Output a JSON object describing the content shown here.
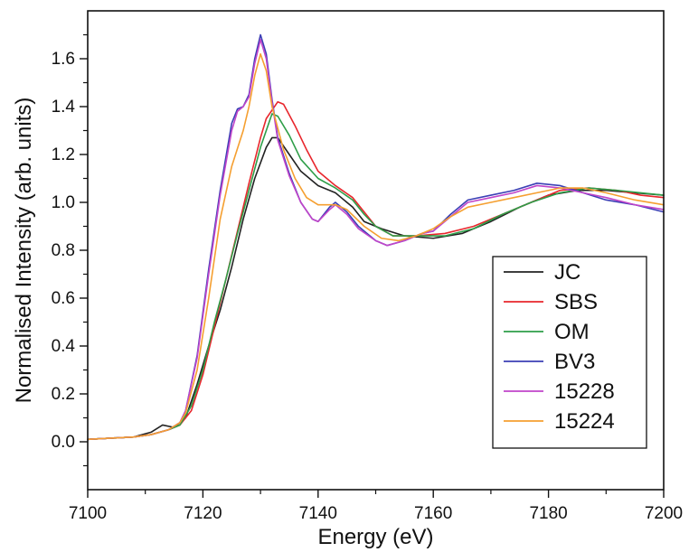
{
  "chart_data": {
    "type": "line",
    "title": "",
    "xlabel": "Energy (eV)",
    "ylabel": "Normalised Intensity (arb. units)",
    "xlim": [
      7100,
      7200
    ],
    "ylim": [
      -0.2,
      1.8
    ],
    "x_ticks": [
      "7100",
      "7120",
      "7140",
      "7160",
      "7180",
      "7200"
    ],
    "y_ticks": [
      "0.0",
      "0.2",
      "0.4",
      "0.6",
      "0.8",
      "1.0",
      "1.2",
      "1.4",
      "1.6"
    ],
    "grid": false,
    "legend_position": "lower-right",
    "series": [
      {
        "name": "JC",
        "color": "#222222",
        "points": [
          [
            7100,
            0.01
          ],
          [
            7108,
            0.02
          ],
          [
            7111,
            0.04
          ],
          [
            7113,
            0.07
          ],
          [
            7115,
            0.06
          ],
          [
            7117,
            0.1
          ],
          [
            7119,
            0.24
          ],
          [
            7121,
            0.4
          ],
          [
            7123,
            0.55
          ],
          [
            7125,
            0.73
          ],
          [
            7127,
            0.93
          ],
          [
            7129,
            1.1
          ],
          [
            7131,
            1.23
          ],
          [
            7132,
            1.27
          ],
          [
            7133,
            1.27
          ],
          [
            7135,
            1.2
          ],
          [
            7137,
            1.13
          ],
          [
            7140,
            1.07
          ],
          [
            7143,
            1.04
          ],
          [
            7146,
            0.98
          ],
          [
            7148,
            0.92
          ],
          [
            7151,
            0.89
          ],
          [
            7155,
            0.86
          ],
          [
            7160,
            0.85
          ],
          [
            7165,
            0.87
          ],
          [
            7170,
            0.92
          ],
          [
            7175,
            0.98
          ],
          [
            7180,
            1.03
          ],
          [
            7185,
            1.05
          ],
          [
            7190,
            1.05
          ],
          [
            7195,
            1.04
          ],
          [
            7200,
            1.03
          ]
        ]
      },
      {
        "name": "SBS",
        "color": "#e8262c",
        "points": [
          [
            7100,
            0.01
          ],
          [
            7108,
            0.02
          ],
          [
            7111,
            0.03
          ],
          [
            7114,
            0.05
          ],
          [
            7116,
            0.07
          ],
          [
            7118,
            0.13
          ],
          [
            7120,
            0.28
          ],
          [
            7122,
            0.48
          ],
          [
            7124,
            0.68
          ],
          [
            7126,
            0.88
          ],
          [
            7128,
            1.08
          ],
          [
            7130,
            1.27
          ],
          [
            7131,
            1.35
          ],
          [
            7133,
            1.42
          ],
          [
            7134,
            1.41
          ],
          [
            7136,
            1.32
          ],
          [
            7138,
            1.22
          ],
          [
            7140,
            1.13
          ],
          [
            7143,
            1.07
          ],
          [
            7146,
            1.02
          ],
          [
            7148,
            0.96
          ],
          [
            7150,
            0.9
          ],
          [
            7153,
            0.86
          ],
          [
            7157,
            0.86
          ],
          [
            7162,
            0.87
          ],
          [
            7167,
            0.9
          ],
          [
            7172,
            0.95
          ],
          [
            7177,
            1.0
          ],
          [
            7182,
            1.05
          ],
          [
            7187,
            1.06
          ],
          [
            7192,
            1.05
          ],
          [
            7196,
            1.03
          ],
          [
            7200,
            1.02
          ]
        ]
      },
      {
        "name": "OM",
        "color": "#2e9e48",
        "points": [
          [
            7100,
            0.01
          ],
          [
            7108,
            0.02
          ],
          [
            7111,
            0.03
          ],
          [
            7114,
            0.05
          ],
          [
            7116,
            0.07
          ],
          [
            7118,
            0.15
          ],
          [
            7120,
            0.3
          ],
          [
            7122,
            0.5
          ],
          [
            7124,
            0.68
          ],
          [
            7126,
            0.87
          ],
          [
            7128,
            1.05
          ],
          [
            7130,
            1.23
          ],
          [
            7131,
            1.3
          ],
          [
            7132,
            1.37
          ],
          [
            7133,
            1.36
          ],
          [
            7135,
            1.28
          ],
          [
            7137,
            1.18
          ],
          [
            7140,
            1.1
          ],
          [
            7143,
            1.06
          ],
          [
            7146,
            1.01
          ],
          [
            7148,
            0.95
          ],
          [
            7150,
            0.9
          ],
          [
            7153,
            0.86
          ],
          [
            7157,
            0.86
          ],
          [
            7162,
            0.86
          ],
          [
            7167,
            0.89
          ],
          [
            7172,
            0.95
          ],
          [
            7177,
            1.0
          ],
          [
            7182,
            1.04
          ],
          [
            7187,
            1.06
          ],
          [
            7192,
            1.05
          ],
          [
            7196,
            1.04
          ],
          [
            7200,
            1.03
          ]
        ]
      },
      {
        "name": "BV3",
        "color": "#3b3fb5",
        "points": [
          [
            7100,
            0.01
          ],
          [
            7108,
            0.02
          ],
          [
            7111,
            0.03
          ],
          [
            7114,
            0.05
          ],
          [
            7116,
            0.08
          ],
          [
            7117,
            0.13
          ],
          [
            7119,
            0.36
          ],
          [
            7121,
            0.72
          ],
          [
            7123,
            1.05
          ],
          [
            7125,
            1.33
          ],
          [
            7126,
            1.39
          ],
          [
            7127,
            1.4
          ],
          [
            7128,
            1.45
          ],
          [
            7129,
            1.6
          ],
          [
            7130,
            1.7
          ],
          [
            7131,
            1.62
          ],
          [
            7132,
            1.43
          ],
          [
            7133,
            1.27
          ],
          [
            7135,
            1.12
          ],
          [
            7137,
            1.0
          ],
          [
            7139,
            0.93
          ],
          [
            7140,
            0.92
          ],
          [
            7142,
            0.98
          ],
          [
            7143,
            1.0
          ],
          [
            7145,
            0.96
          ],
          [
            7147,
            0.9
          ],
          [
            7150,
            0.84
          ],
          [
            7152,
            0.82
          ],
          [
            7155,
            0.84
          ],
          [
            7158,
            0.87
          ],
          [
            7160,
            0.88
          ],
          [
            7163,
            0.95
          ],
          [
            7166,
            1.01
          ],
          [
            7170,
            1.03
          ],
          [
            7174,
            1.05
          ],
          [
            7178,
            1.08
          ],
          [
            7182,
            1.07
          ],
          [
            7186,
            1.04
          ],
          [
            7190,
            1.01
          ],
          [
            7195,
            0.99
          ],
          [
            7200,
            0.96
          ]
        ]
      },
      {
        "name": "15228",
        "color": "#c044c9",
        "points": [
          [
            7100,
            0.01
          ],
          [
            7108,
            0.02
          ],
          [
            7111,
            0.03
          ],
          [
            7114,
            0.05
          ],
          [
            7116,
            0.08
          ],
          [
            7117,
            0.13
          ],
          [
            7119,
            0.35
          ],
          [
            7121,
            0.7
          ],
          [
            7123,
            1.03
          ],
          [
            7125,
            1.3
          ],
          [
            7126,
            1.38
          ],
          [
            7127,
            1.4
          ],
          [
            7128,
            1.44
          ],
          [
            7129,
            1.58
          ],
          [
            7130,
            1.68
          ],
          [
            7131,
            1.6
          ],
          [
            7132,
            1.42
          ],
          [
            7133,
            1.26
          ],
          [
            7135,
            1.11
          ],
          [
            7137,
            1.0
          ],
          [
            7139,
            0.93
          ],
          [
            7140,
            0.92
          ],
          [
            7142,
            0.97
          ],
          [
            7143,
            0.99
          ],
          [
            7145,
            0.95
          ],
          [
            7147,
            0.89
          ],
          [
            7150,
            0.84
          ],
          [
            7152,
            0.82
          ],
          [
            7155,
            0.84
          ],
          [
            7158,
            0.87
          ],
          [
            7160,
            0.88
          ],
          [
            7163,
            0.94
          ],
          [
            7166,
            1.0
          ],
          [
            7170,
            1.02
          ],
          [
            7174,
            1.04
          ],
          [
            7178,
            1.07
          ],
          [
            7182,
            1.06
          ],
          [
            7186,
            1.04
          ],
          [
            7190,
            1.02
          ],
          [
            7195,
            0.99
          ],
          [
            7200,
            0.97
          ]
        ]
      },
      {
        "name": "15224",
        "color": "#f59f30",
        "points": [
          [
            7100,
            0.01
          ],
          [
            7108,
            0.02
          ],
          [
            7111,
            0.03
          ],
          [
            7114,
            0.05
          ],
          [
            7116,
            0.08
          ],
          [
            7117,
            0.12
          ],
          [
            7119,
            0.3
          ],
          [
            7121,
            0.6
          ],
          [
            7123,
            0.93
          ],
          [
            7125,
            1.15
          ],
          [
            7127,
            1.3
          ],
          [
            7128,
            1.4
          ],
          [
            7129,
            1.53
          ],
          [
            7130,
            1.62
          ],
          [
            7131,
            1.55
          ],
          [
            7132,
            1.4
          ],
          [
            7134,
            1.22
          ],
          [
            7136,
            1.1
          ],
          [
            7138,
            1.02
          ],
          [
            7140,
            0.99
          ],
          [
            7143,
            0.99
          ],
          [
            7145,
            0.97
          ],
          [
            7148,
            0.9
          ],
          [
            7151,
            0.85
          ],
          [
            7154,
            0.84
          ],
          [
            7157,
            0.86
          ],
          [
            7160,
            0.89
          ],
          [
            7163,
            0.94
          ],
          [
            7166,
            0.98
          ],
          [
            7170,
            1.0
          ],
          [
            7174,
            1.02
          ],
          [
            7178,
            1.04
          ],
          [
            7182,
            1.06
          ],
          [
            7186,
            1.06
          ],
          [
            7190,
            1.04
          ],
          [
            7195,
            1.01
          ],
          [
            7200,
            0.99
          ]
        ]
      }
    ]
  }
}
